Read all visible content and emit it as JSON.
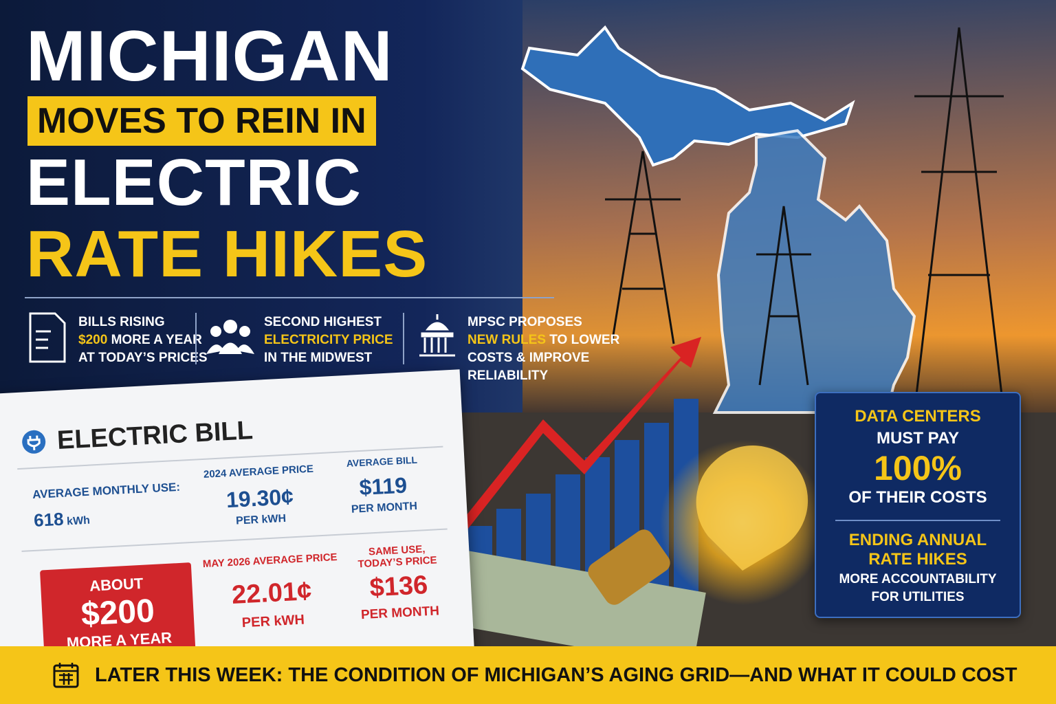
{
  "headline": {
    "line1": "MICHIGAN",
    "line2": "MOVES TO REIN IN",
    "line3": "ELECTRIC",
    "line4": "RATE HIKES"
  },
  "facts": [
    {
      "title": "BILLS RISING",
      "highlight": "$200",
      "text": "MORE A YEAR",
      "sub": "AT TODAY’S PRICES"
    },
    {
      "title": "SECOND HIGHEST",
      "highlight": "ELECTRICITY PRICE",
      "sub": "IN THE MIDWEST"
    },
    {
      "title": "MPSC PROPOSES",
      "highlight": "NEW RULES",
      "text": "TO LOWER",
      "sub": "COSTS & IMPROVE",
      "sub2": "RELIABILITY"
    }
  ],
  "bill": {
    "title": "ELECTRIC BILL",
    "use": {
      "label": "AVERAGE MONTHLY USE:",
      "value": "618",
      "unit": "kWh"
    },
    "price2024": {
      "label": "2024 AVERAGE PRICE",
      "value": "19.30¢",
      "unit": "PER kWH"
    },
    "avg_bill": {
      "label": "AVERAGE BILL",
      "value": "$119",
      "unit": "PER MONTH"
    },
    "about": {
      "label": "ABOUT",
      "value": "$200",
      "unit": "MORE A YEAR"
    },
    "price2026": {
      "label": "MAY 2026 AVERAGE PRICE",
      "value": "22.01¢",
      "unit": "PER kWH"
    },
    "same_use": {
      "label1": "SAME USE,",
      "label2": "TODAY’S PRICE",
      "value": "$136",
      "unit": "PER MONTH"
    }
  },
  "callout": {
    "line1": "DATA CENTERS",
    "line2": "MUST PAY",
    "value": "100%",
    "line3": "OF THEIR COSTS",
    "line4": "ENDING ANNUAL",
    "line5": "RATE HIKES",
    "line6": "MORE ACCOUNTABILITY",
    "line7": "FOR UTILITIES"
  },
  "footer": {
    "text": "LATER THIS WEEK: THE CONDITION OF MICHIGAN’S AGING GRID—AND WHAT IT COULD COST"
  }
}
